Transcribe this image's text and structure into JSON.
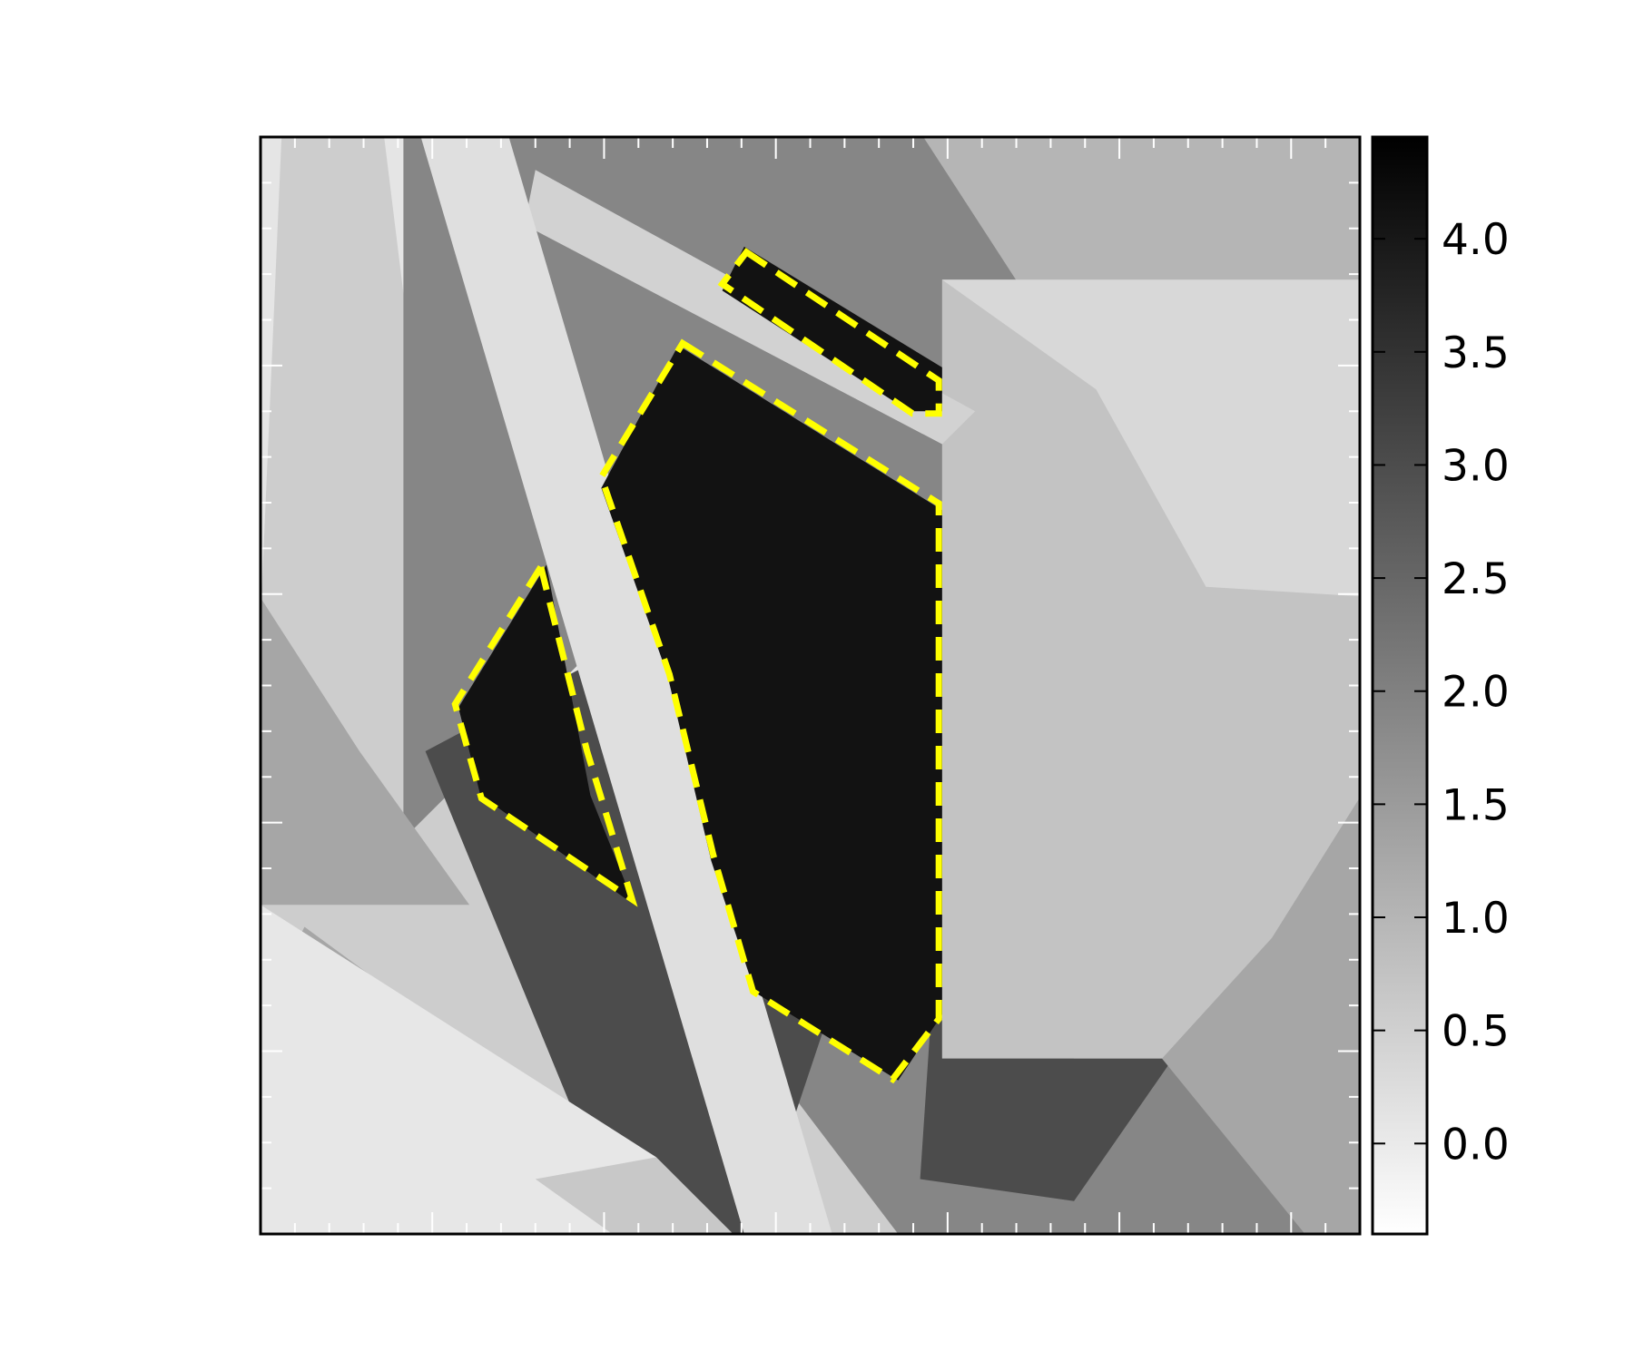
{
  "chart_data": {
    "type": "heatmap",
    "title": "",
    "xlabel": "",
    "ylabel": "",
    "colormap": "gray_r",
    "grid": false,
    "colorbar": {
      "range": [
        -0.4,
        4.45
      ],
      "ticks": [
        0.0,
        0.5,
        1.0,
        1.5,
        2.0,
        2.5,
        3.0,
        3.5,
        4.0
      ],
      "tick_labels": [
        "0.0",
        "0.5",
        "1.0",
        "1.5",
        "2.0",
        "2.5",
        "3.0",
        "3.5",
        "4.0"
      ]
    },
    "x_minor_tick_count": 31,
    "y_minor_tick_count": 23,
    "image_extent": {
      "x": [
        0,
        1
      ],
      "y": [
        0,
        1
      ]
    },
    "regions": [
      {
        "value": 0.1,
        "points": [
          [
            0.0,
            1.02
          ],
          [
            0.22,
            1.02
          ],
          [
            0.22,
            0.0
          ],
          [
            0.0,
            0.0
          ]
        ]
      },
      {
        "value": 0.55,
        "points": [
          [
            0.02,
            1.02
          ],
          [
            0.11,
            1.02
          ],
          [
            0.18,
            0.45
          ],
          [
            0.32,
            0.0
          ],
          [
            0.0,
            0.0
          ],
          [
            0.0,
            0.56
          ]
        ]
      },
      {
        "value": 0.55,
        "points": [
          [
            0.3,
            1.02
          ],
          [
            1.02,
            1.02
          ],
          [
            1.02,
            0.0
          ],
          [
            0.3,
            0.0
          ]
        ]
      },
      {
        "value": 1.9,
        "points": [
          [
            0.13,
            1.02
          ],
          [
            0.73,
            1.02
          ],
          [
            0.32,
            0.55
          ],
          [
            0.13,
            0.36
          ]
        ]
      },
      {
        "value": 1.9,
        "points": [
          [
            0.43,
            1.02
          ],
          [
            1.02,
            1.02
          ],
          [
            1.02,
            0.0
          ],
          [
            0.58,
            0.0
          ],
          [
            0.33,
            0.33
          ]
        ]
      },
      {
        "value": 1.0,
        "points": [
          [
            0.59,
            1.02
          ],
          [
            1.02,
            1.02
          ],
          [
            1.02,
            0.58
          ],
          [
            0.7,
            0.85
          ]
        ]
      },
      {
        "value": 1.3,
        "points": [
          [
            0.0,
            0.58
          ],
          [
            0.09,
            0.44
          ],
          [
            0.19,
            0.3
          ],
          [
            0.0,
            0.3
          ]
        ]
      },
      {
        "value": 1.3,
        "points": [
          [
            0.04,
            0.28
          ],
          [
            0.42,
            0.0
          ],
          [
            0.0,
            0.0
          ],
          [
            0.0,
            0.2
          ]
        ]
      },
      {
        "value": 3.0,
        "points": [
          [
            0.15,
            0.44
          ],
          [
            0.45,
            0.6
          ],
          [
            0.55,
            0.3
          ],
          [
            0.45,
            0.0
          ],
          [
            0.33,
            0.0
          ]
        ]
      },
      {
        "value": 3.0,
        "points": [
          [
            0.61,
            0.2
          ],
          [
            0.74,
            0.16
          ],
          [
            0.83,
            0.16
          ],
          [
            0.74,
            0.03
          ],
          [
            0.6,
            0.05
          ]
        ]
      },
      {
        "value": 0.75,
        "points": [
          [
            0.62,
            0.87
          ],
          [
            1.02,
            0.87
          ],
          [
            1.02,
            0.16
          ],
          [
            0.62,
            0.16
          ]
        ]
      },
      {
        "value": 0.35,
        "points": [
          [
            0.62,
            0.87
          ],
          [
            1.02,
            0.87
          ],
          [
            1.02,
            0.58
          ],
          [
            0.86,
            0.59
          ],
          [
            0.76,
            0.77
          ]
        ]
      },
      {
        "value": 0.35,
        "points": [
          [
            0.82,
            0.16
          ],
          [
            1.02,
            0.16
          ],
          [
            1.02,
            0.43
          ],
          [
            0.92,
            0.27
          ]
        ]
      },
      {
        "value": 1.3,
        "points": [
          [
            0.95,
            0.0
          ],
          [
            1.02,
            0.0
          ],
          [
            1.02,
            0.43
          ],
          [
            0.92,
            0.27
          ],
          [
            0.82,
            0.16
          ]
        ]
      },
      {
        "value": 0.05,
        "points": [
          [
            0.0,
            0.3
          ],
          [
            0.36,
            0.07
          ],
          [
            0.32,
            0.0
          ],
          [
            0.0,
            0.0
          ]
        ]
      },
      {
        "value": 0.65,
        "points": [
          [
            0.25,
            0.05
          ],
          [
            0.36,
            0.07
          ],
          [
            0.43,
            0.0
          ],
          [
            0.32,
            0.0
          ]
        ]
      },
      {
        "value": 0.45,
        "points": [
          [
            0.25,
            0.97
          ],
          [
            0.65,
            0.75
          ],
          [
            0.62,
            0.72
          ],
          [
            0.24,
            0.92
          ]
        ]
      },
      {
        "value": 0.2,
        "points": [
          [
            0.14,
            1.02
          ],
          [
            0.22,
            1.02
          ],
          [
            0.52,
            0.0
          ],
          [
            0.44,
            0.0
          ]
        ]
      },
      {
        "value": 4.1,
        "points": [
          [
            0.44,
            0.9
          ],
          [
            0.62,
            0.79
          ],
          [
            0.62,
            0.75
          ],
          [
            0.59,
            0.75
          ],
          [
            0.42,
            0.86
          ]
        ]
      },
      {
        "value": 4.1,
        "points": [
          [
            0.38,
            0.81
          ],
          [
            0.62,
            0.66
          ],
          [
            0.62,
            0.2
          ],
          [
            0.58,
            0.14
          ],
          [
            0.45,
            0.22
          ],
          [
            0.41,
            0.34
          ],
          [
            0.37,
            0.51
          ],
          [
            0.31,
            0.68
          ]
        ]
      },
      {
        "value": 4.1,
        "points": [
          [
            0.26,
            0.61
          ],
          [
            0.18,
            0.48
          ],
          [
            0.2,
            0.4
          ],
          [
            0.34,
            0.3
          ],
          [
            0.3,
            0.4
          ],
          [
            0.26,
            0.61
          ]
        ]
      }
    ],
    "contours": [
      {
        "color": "#ffff00",
        "style": "dashed",
        "points": [
          [
            0.442,
            0.895
          ],
          [
            0.617,
            0.778
          ],
          [
            0.617,
            0.748
          ],
          [
            0.593,
            0.748
          ],
          [
            0.42,
            0.866
          ]
        ]
      },
      {
        "color": "#ffff00",
        "style": "dashed",
        "points": [
          [
            0.384,
            0.812
          ],
          [
            0.617,
            0.666
          ],
          [
            0.617,
            0.196
          ],
          [
            0.575,
            0.141
          ],
          [
            0.448,
            0.221
          ],
          [
            0.412,
            0.345
          ],
          [
            0.372,
            0.51
          ],
          [
            0.31,
            0.69
          ]
        ]
      },
      {
        "color": "#ffff00",
        "style": "dashed",
        "points": [
          [
            0.255,
            0.608
          ],
          [
            0.177,
            0.483
          ],
          [
            0.201,
            0.397
          ],
          [
            0.338,
            0.305
          ],
          [
            0.297,
            0.44
          ],
          [
            0.255,
            0.608
          ]
        ]
      }
    ]
  }
}
